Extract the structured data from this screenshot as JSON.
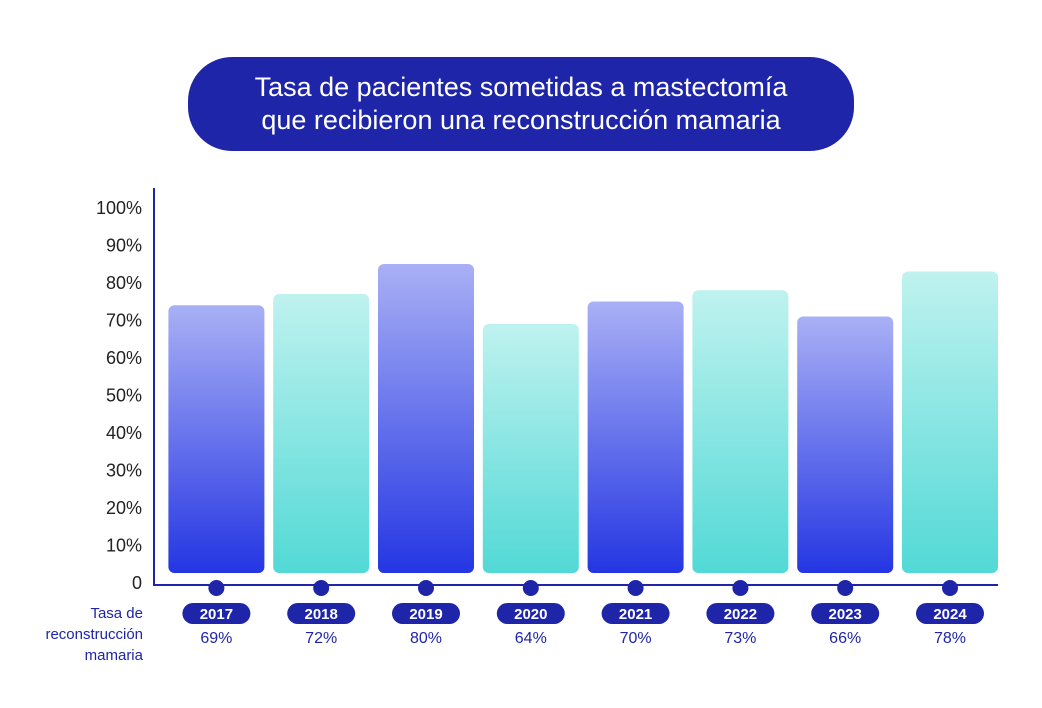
{
  "title": {
    "line1": "Tasa de pacientes sometidas a mastectomía",
    "line2": "que recibieron una reconstrucción mamaria"
  },
  "row_label": {
    "line1": "Tasa de",
    "line2": "reconstrucción",
    "line3": "mamaria"
  },
  "colors": {
    "title_bg": "#1e25a8",
    "axis": "#1e25a8",
    "blue_top": "#a9b0f5",
    "blue_bottom": "#2436e3",
    "teal_top": "#bff2ef",
    "teal_bottom": "#52d9d6"
  },
  "chart_data": {
    "type": "bar",
    "categories": [
      "2017",
      "2018",
      "2019",
      "2020",
      "2021",
      "2022",
      "2023",
      "2024"
    ],
    "values": [
      69,
      72,
      80,
      64,
      70,
      73,
      66,
      78
    ],
    "value_labels": [
      "69%",
      "72%",
      "80%",
      "64%",
      "70%",
      "73%",
      "66%",
      "78%"
    ],
    "bar_colors": [
      "blue",
      "teal",
      "blue",
      "teal",
      "blue",
      "teal",
      "blue",
      "teal"
    ],
    "y_ticks": [
      "0",
      "10%",
      "20%",
      "30%",
      "40%",
      "50%",
      "60%",
      "70%",
      "80%",
      "90%",
      "100%"
    ],
    "ylim": [
      0,
      100
    ],
    "grid": false,
    "legend": "none"
  }
}
